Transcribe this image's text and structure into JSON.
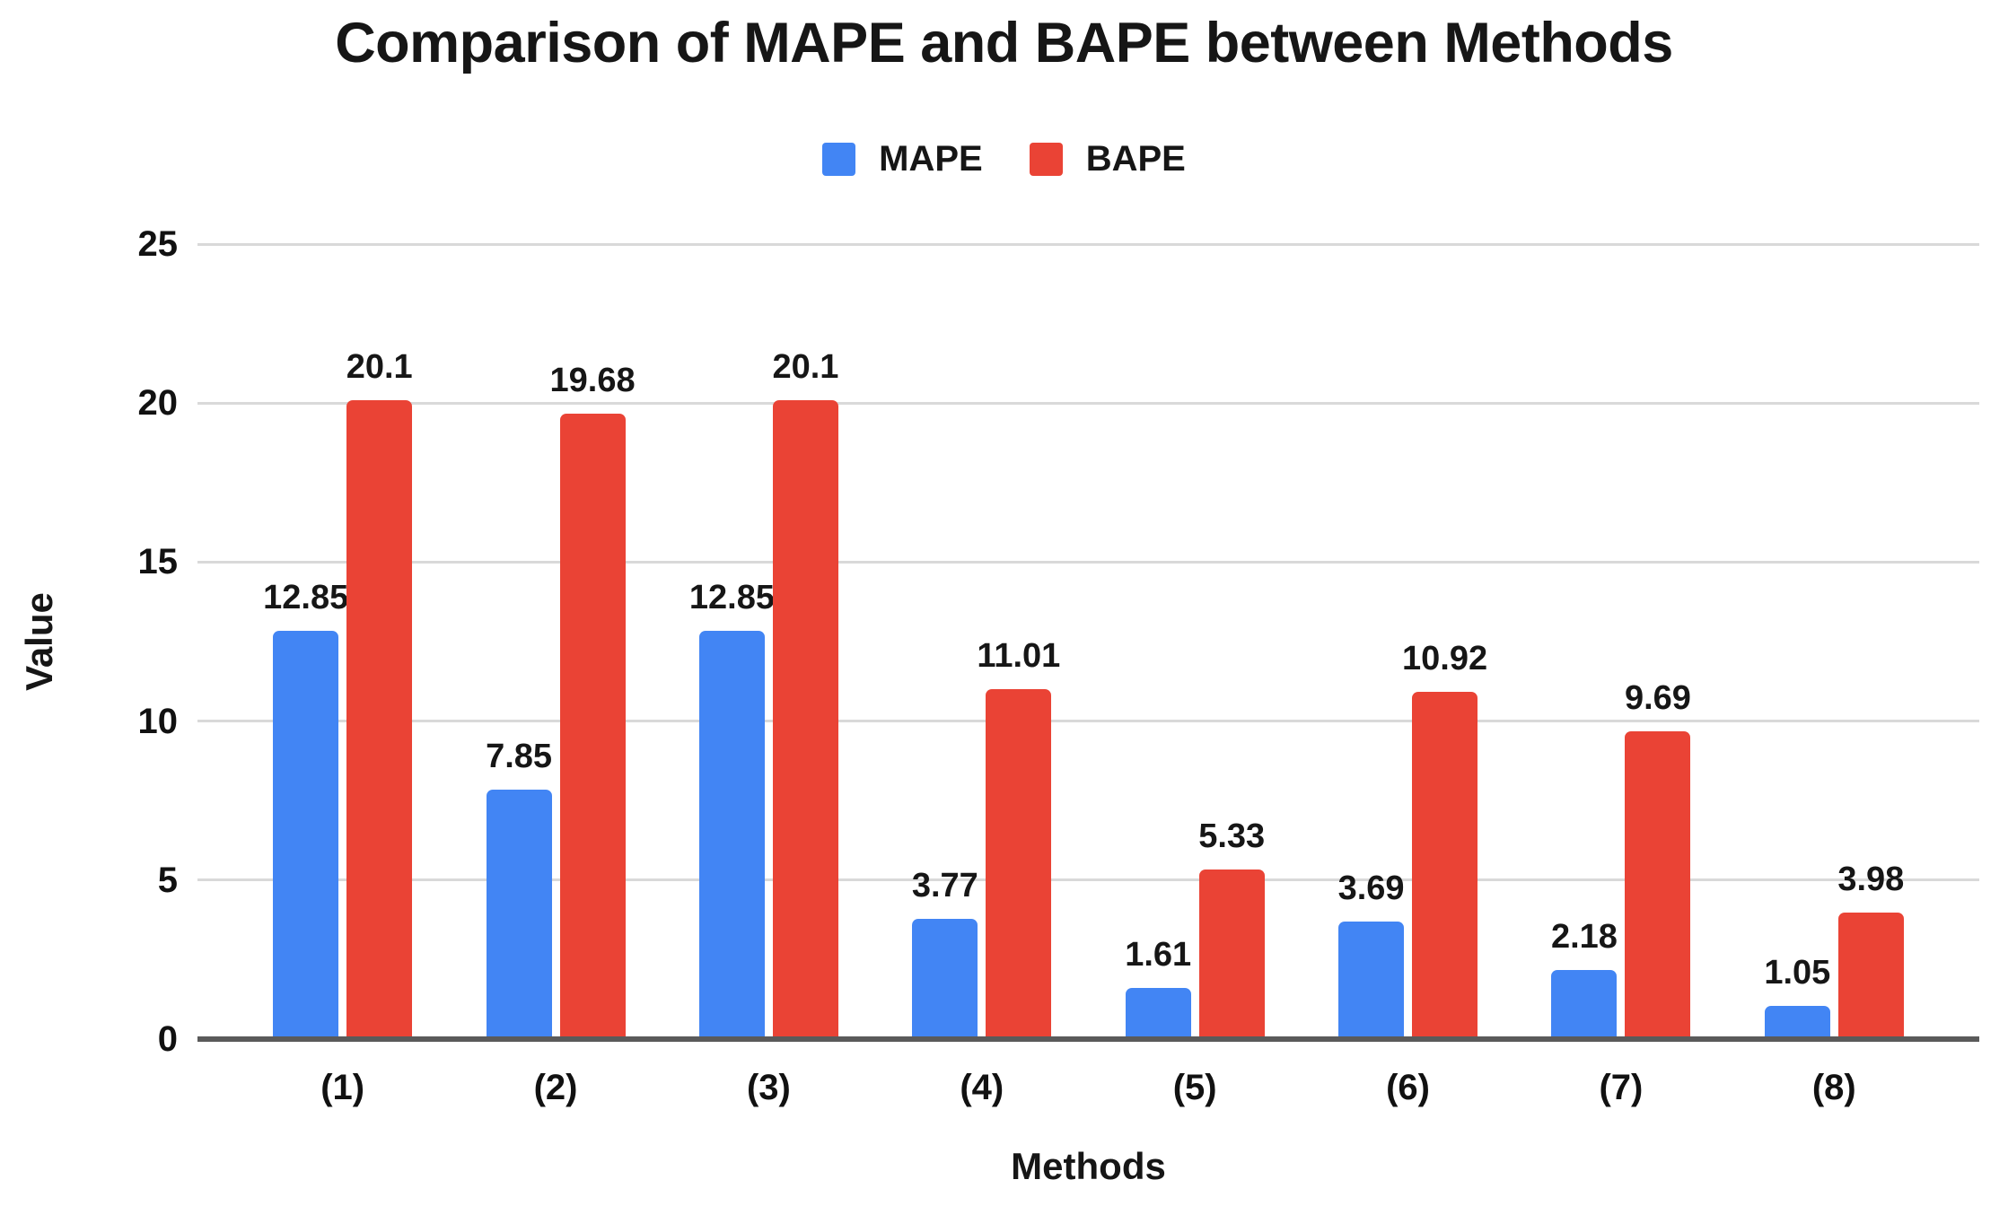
{
  "chart_data": {
    "type": "bar",
    "title": "Comparison of MAPE and BAPE between Methods",
    "xlabel": "Methods",
    "ylabel": "Value",
    "categories": [
      "(1)",
      "(2)",
      "(3)",
      "(4)",
      "(5)",
      "(6)",
      "(7)",
      "(8)"
    ],
    "series": [
      {
        "name": "MAPE",
        "color": "#4285F4",
        "values": [
          12.85,
          7.85,
          12.85,
          3.77,
          1.61,
          3.69,
          2.18,
          1.05
        ]
      },
      {
        "name": "BAPE",
        "color": "#EA4335",
        "values": [
          20.1,
          19.68,
          20.1,
          11.01,
          5.33,
          10.92,
          9.69,
          3.98
        ]
      }
    ],
    "ylim": [
      0,
      25
    ],
    "yticks": [
      0,
      5,
      10,
      15,
      20,
      25
    ],
    "grid": true,
    "legend_position": "top",
    "data_labels": true
  },
  "colors": {
    "grid": "#d9d9d9",
    "axis_baseline": "#5a5a5a",
    "text": "#161616",
    "mape": "#4285F4",
    "bape": "#EA4335"
  }
}
